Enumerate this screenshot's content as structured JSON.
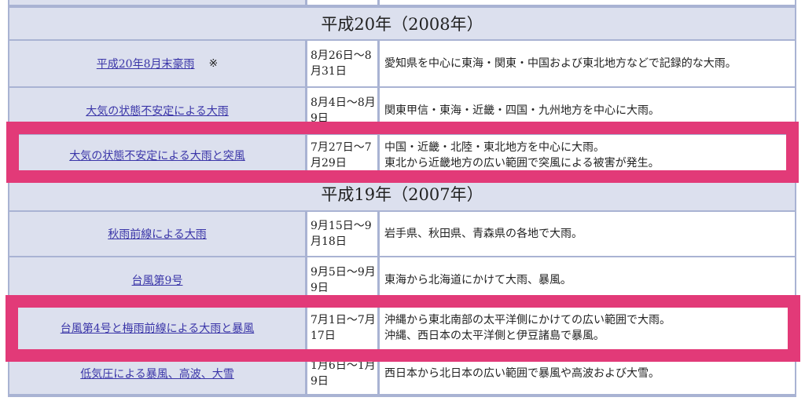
{
  "sections": [
    {
      "year": "平成20年（2008年）",
      "rows": [
        {
          "name": "平成20年8月末豪雨",
          "note": "※",
          "date": "8月26日～8月31日",
          "desc": "愛知県を中心に東海・関東・中国および東北地方などで記録的な大雨。"
        },
        {
          "name": "大気の状態不安定による大雨",
          "date": "8月4日～8月9日",
          "desc": "関東甲信・東海・近畿・四国・九州地方を中心に大雨。"
        },
        {
          "name": "大気の状態不安定による大雨と突風",
          "date": "7月27日～7月29日",
          "desc": "中国・近畿・北陸・東北地方を中心に大雨。\n東北から近畿地方の広い範囲で突風による被害が発生。",
          "highlighted": true
        }
      ]
    },
    {
      "year": "平成19年（2007年）",
      "rows": [
        {
          "name": "秋雨前線による大雨",
          "date": "9月15日～9月18日",
          "desc": "岩手県、秋田県、青森県の各地で大雨。"
        },
        {
          "name": "台風第9号",
          "date": "9月5日～9月9日",
          "desc": "東海から北海道にかけて大雨、暴風。"
        },
        {
          "name": "台風第4号と梅雨前線による大雨と暴風",
          "date": "7月1日～7月17日",
          "desc": "沖縄から東北南部の太平洋側にかけての広い範囲で大雨。\n沖縄、西日本の太平洋側と伊豆諸島で暴風。",
          "highlighted": true
        },
        {
          "name": "低気圧による暴風、高波、大雪",
          "date": "1月6日～1月9日",
          "desc": "西日本から北日本の広い範囲で暴風や高波および大雪。"
        }
      ]
    }
  ],
  "colors": {
    "highlight": "#e23a78",
    "header_bg": "#dce0ee",
    "border": "#a9b3d3",
    "link": "#3a35a8"
  }
}
